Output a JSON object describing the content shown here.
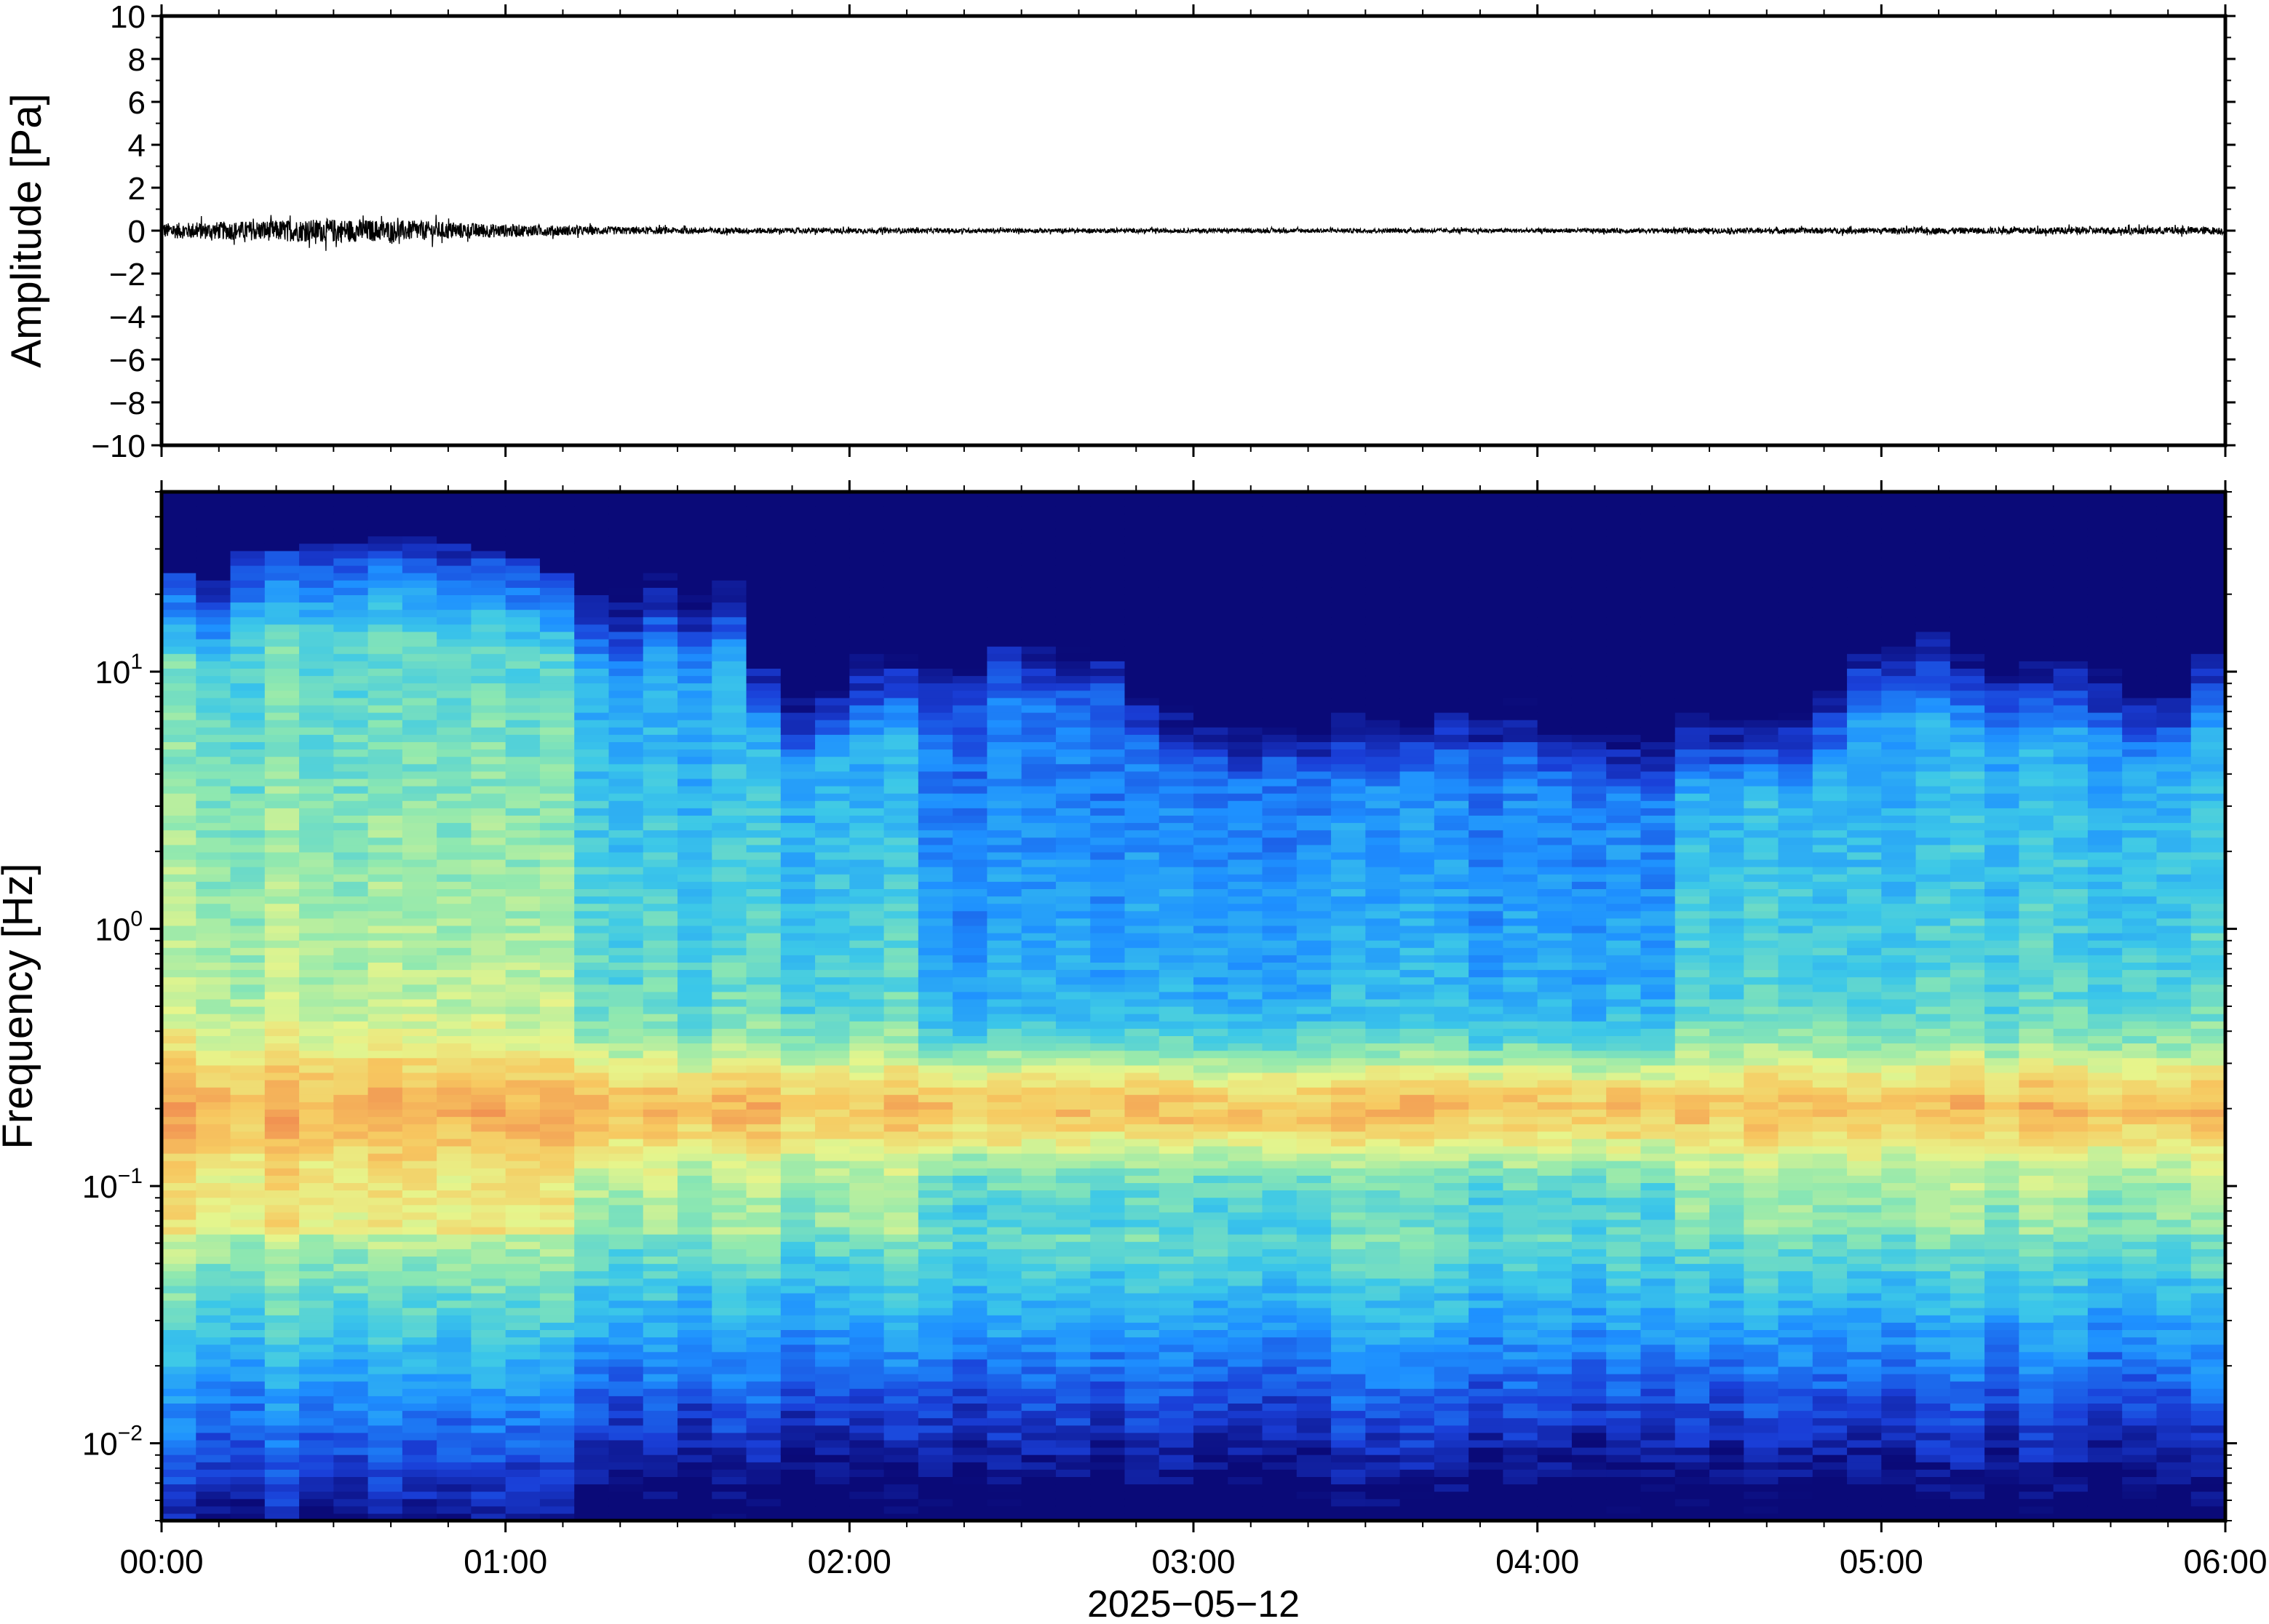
{
  "chart_data": [
    {
      "type": "line",
      "ylabel": "Amplitude [Pa]",
      "ylim": [
        -10,
        10
      ],
      "yticks": [
        "10",
        "8",
        "6",
        "4",
        "2",
        "0",
        "−2",
        "−4",
        "−6",
        "−8",
        "−10"
      ],
      "ytick_values": [
        10,
        8,
        6,
        4,
        2,
        0,
        -2,
        -4,
        -6,
        -8,
        -10
      ],
      "xlim_hours": [
        0,
        6
      ],
      "noise_envelope": {
        "hours": [
          0,
          0.25,
          0.5,
          0.75,
          1.0,
          1.25,
          1.5,
          2.0,
          2.5,
          3.0,
          3.5,
          4.0,
          4.5,
          5.0,
          5.5,
          6.0
        ],
        "amplitude_pa": [
          0.35,
          0.45,
          0.55,
          0.45,
          0.3,
          0.2,
          0.15,
          0.12,
          0.1,
          0.1,
          0.1,
          0.1,
          0.12,
          0.14,
          0.16,
          0.18
        ]
      },
      "grid": false
    },
    {
      "type": "heatmap",
      "ylabel": "Frequency [Hz]",
      "yscale": "log",
      "ylim_hz": [
        0.005,
        50
      ],
      "ytick_labels": [
        {
          "base": "10",
          "exp": "1",
          "value": 10
        },
        {
          "base": "10",
          "exp": "0",
          "value": 1
        },
        {
          "base": "10",
          "exp": "−1",
          "value": 0.1
        },
        {
          "base": "10",
          "exp": "−2",
          "value": 0.01
        }
      ],
      "xlabel": "2025−05−12",
      "xticks": [
        "00:00",
        "01:00",
        "02:00",
        "03:00",
        "04:00",
        "05:00",
        "06:00"
      ],
      "xtick_hours": [
        0,
        1,
        2,
        3,
        4,
        5,
        6
      ],
      "colormap": [
        "#0a0a78",
        "#1a3fd8",
        "#1e90ff",
        "#3cc8e8",
        "#8ee8b0",
        "#e6f58c",
        "#f7c860",
        "#f08a50"
      ],
      "time_blocks": 60,
      "upper_cutoff_hz_per_block": [
        24,
        22,
        30,
        30,
        32,
        32,
        33,
        33,
        31,
        30,
        28,
        25,
        22,
        21,
        24,
        22,
        24,
        11,
        9,
        10,
        12,
        12,
        14,
        17,
        19,
        17,
        16,
        18,
        11,
        9,
        9,
        8,
        9,
        8,
        8,
        8,
        8,
        9,
        9,
        9,
        8,
        8,
        7,
        7,
        7,
        7,
        7,
        7,
        9,
        14,
        14,
        15,
        12,
        12,
        11,
        12,
        11,
        9,
        9,
        12
      ],
      "microseism_peak_hz": 0.2,
      "level_regions": [
        {
          "hours": [
            0,
            1.2
          ],
          "above_1hz": "green-yellow",
          "microseism": "orange"
        },
        {
          "hours": [
            1.2,
            2.2
          ],
          "above_1hz": "cyan-blue",
          "microseism": "orange"
        },
        {
          "hours": [
            2.2,
            4.4
          ],
          "above_1hz": "blue",
          "microseism": "yellow-orange"
        },
        {
          "hours": [
            4.4,
            6.0
          ],
          "above_1hz": "cyan-blue",
          "microseism": "yellow-orange"
        }
      ]
    }
  ]
}
